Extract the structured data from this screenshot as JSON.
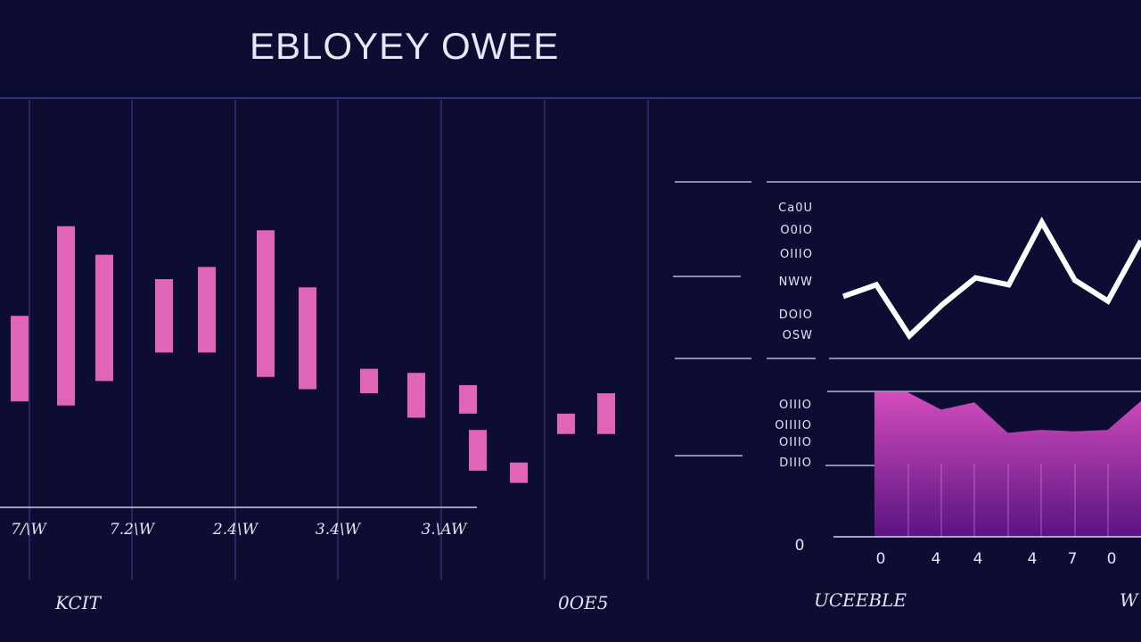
{
  "title": "EBLOYEY OWEE",
  "colors": {
    "background": "#0d0c33",
    "bar": "#e064b8",
    "line": "#ffffff",
    "area_top": "#d34cbd",
    "area_bottom": "#5a1482",
    "grid": "#3a3a7a"
  },
  "chart_data": [
    {
      "type": "bar",
      "title": "",
      "x_tick_labels": [
        "7/\\W",
        "7.2\\W",
        "2.4\\W",
        "3.4\\W",
        "3.\\AW"
      ],
      "footer_labels": [
        "KCIT",
        "0OE5"
      ],
      "bars": [
        {
          "low": 2.6,
          "high": 4.7
        },
        {
          "low": 2.5,
          "high": 6.9
        },
        {
          "low": 3.1,
          "high": 6.2
        },
        {
          "low": 3.8,
          "high": 5.6
        },
        {
          "low": 3.8,
          "high": 5.9
        },
        {
          "low": 3.2,
          "high": 6.8
        },
        {
          "low": 2.9,
          "high": 5.4
        },
        {
          "low": 2.8,
          "high": 3.4
        },
        {
          "low": 2.2,
          "high": 3.3
        },
        {
          "low": 2.3,
          "high": 3.0
        },
        {
          "low": 0.9,
          "high": 1.9
        },
        {
          "low": 0.6,
          "high": 1.1
        },
        {
          "low": 1.8,
          "high": 2.3
        },
        {
          "low": 1.8,
          "high": 2.8
        }
      ],
      "ylim": [
        0,
        10
      ]
    },
    {
      "type": "line",
      "y_tick_labels": [
        "Ca0U",
        "O0IO",
        "OIIIO",
        "NWW",
        "DOIO",
        "OSW"
      ],
      "series": [
        {
          "x": [
            0,
            1,
            2,
            3,
            4,
            5,
            6,
            7,
            8,
            9
          ],
          "values": [
            5.2,
            6.2,
            1.8,
            4.5,
            6.8,
            6.2,
            11.6,
            6.6,
            4.8,
            10.0
          ]
        }
      ],
      "ylim": [
        0,
        15
      ]
    },
    {
      "type": "area",
      "y_tick_labels": [
        "OIIIO",
        "OIIIIO",
        "OIIIO",
        "DIIIO"
      ],
      "y_zero_label": "0",
      "x_tick_labels": [
        "0",
        "4",
        "4",
        "4",
        "7",
        "0"
      ],
      "footer_labels": [
        "UCEEBLE",
        "W"
      ],
      "series": [
        {
          "x": [
            0,
            1,
            2,
            3,
            4,
            5,
            6,
            7,
            8
          ],
          "values": [
            10.0,
            10.0,
            8.8,
            9.3,
            7.2,
            7.4,
            7.3,
            7.4,
            9.4
          ]
        }
      ],
      "ylim": [
        0,
        10
      ]
    }
  ]
}
